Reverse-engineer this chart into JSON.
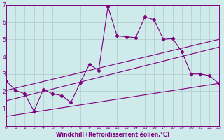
{
  "xlabel": "Windchill (Refroidissement éolien,°C)",
  "xlim": [
    0,
    23
  ],
  "ylim": [
    0,
    7
  ],
  "xticks": [
    0,
    1,
    2,
    3,
    4,
    5,
    6,
    7,
    8,
    9,
    10,
    11,
    12,
    13,
    14,
    15,
    16,
    17,
    18,
    19,
    20,
    21,
    22,
    23
  ],
  "yticks": [
    1,
    2,
    3,
    4,
    5,
    6,
    7
  ],
  "background_color": "#ceeaea",
  "line_color": "#800080",
  "grid_color": "#b0c8c8",
  "series1_x": [
    0,
    1,
    2,
    3,
    4,
    5,
    6,
    7,
    8,
    9,
    10,
    11,
    12,
    13,
    14,
    15,
    16,
    17,
    18,
    19,
    20,
    21,
    22,
    23
  ],
  "series1_y": [
    2.6,
    2.05,
    1.85,
    0.85,
    2.1,
    1.85,
    1.75,
    1.35,
    2.5,
    3.55,
    3.2,
    6.9,
    5.2,
    5.15,
    5.1,
    6.3,
    6.15,
    5.0,
    5.05,
    4.3,
    3.0,
    3.0,
    2.9,
    2.45
  ],
  "series2_x": [
    0,
    23
  ],
  "series2_y": [
    2.05,
    5.0
  ],
  "series3_x": [
    0,
    23
  ],
  "series3_y": [
    1.45,
    4.55
  ],
  "series4_x": [
    0,
    23
  ],
  "series4_y": [
    0.55,
    2.45
  ]
}
